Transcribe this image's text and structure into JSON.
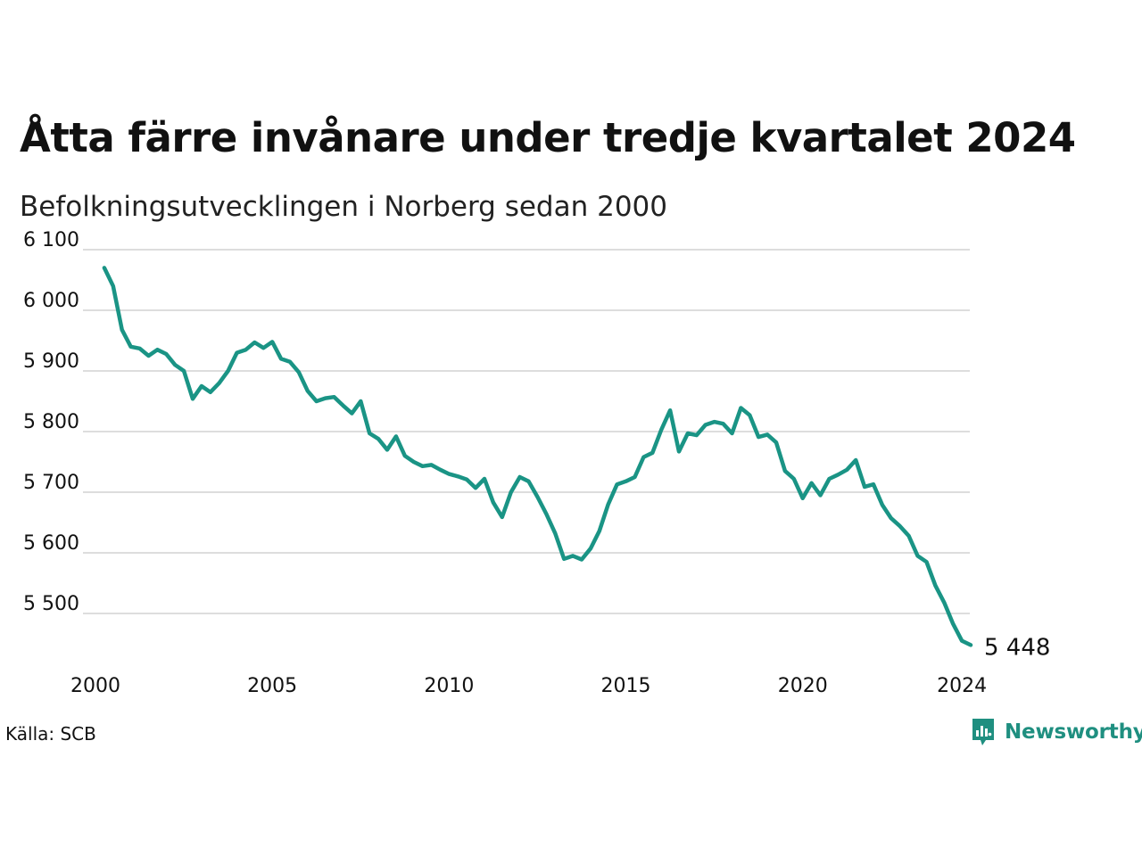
{
  "title": "Åtta färre invånare under tredje kvartalet 2024",
  "subtitle": "Befolkningsutvecklingen i Norberg sedan 2000",
  "source": "Källa: SCB",
  "brand": "Newsworthy",
  "colors": {
    "line": "#1a9485",
    "grid": "#dddddd",
    "brand": "#1f8f80"
  },
  "chart_data": {
    "type": "line",
    "title": "Åtta färre invånare under tredje kvartalet 2024",
    "subtitle": "Befolkningsutvecklingen i Norberg sedan 2000",
    "xlabel": "",
    "ylabel": "",
    "ylim": [
      5445,
      6100
    ],
    "xlim": [
      2000,
      2024.75
    ],
    "yticks": [
      5500,
      5600,
      5700,
      5800,
      5900,
      6000,
      6100
    ],
    "ytick_labels": [
      "5 500",
      "5 600",
      "5 700",
      "5 800",
      "5 900",
      "6 000",
      "6 100"
    ],
    "xticks": [
      2000,
      2005,
      2010,
      2015,
      2020,
      2024
    ],
    "xtick_labels": [
      "2000",
      "2005",
      "2010",
      "2015",
      "2020",
      "2024"
    ],
    "grid": true,
    "end_label": "5 448",
    "series": [
      {
        "x": [
          2000.25,
          2000.5,
          2000.75,
          2001,
          2001.25,
          2001.5,
          2001.75,
          2002,
          2002.25,
          2002.5,
          2002.75,
          2003,
          2003.25,
          2003.5,
          2003.75,
          2004,
          2004.25,
          2004.5,
          2004.75,
          2005,
          2005.25,
          2005.5,
          2005.75,
          2006,
          2006.25,
          2006.5,
          2006.75,
          2007,
          2007.25,
          2007.5,
          2007.75,
          2008,
          2008.25,
          2008.5,
          2008.75,
          2009,
          2009.25,
          2009.5,
          2009.75,
          2010,
          2010.25,
          2010.5,
          2010.75,
          2011,
          2011.25,
          2011.5,
          2011.75,
          2012,
          2012.25,
          2012.5,
          2012.75,
          2013,
          2013.25,
          2013.5,
          2013.75,
          2014,
          2014.25,
          2014.5,
          2014.75,
          2015,
          2015.25,
          2015.5,
          2015.75,
          2016,
          2016.25,
          2016.5,
          2016.75,
          2017,
          2017.25,
          2017.5,
          2017.75,
          2018,
          2018.25,
          2018.5,
          2018.75,
          2019,
          2019.25,
          2019.5,
          2019.75,
          2020,
          2020.25,
          2020.5,
          2020.75,
          2021,
          2021.25,
          2021.5,
          2021.75,
          2022,
          2022.25,
          2022.5,
          2022.75,
          2023,
          2023.25,
          2023.5,
          2023.75,
          2024,
          2024.25,
          2024.5,
          2024.75
        ],
        "values": [
          6070,
          6040,
          5968,
          5940,
          5937,
          5925,
          5935,
          5928,
          5910,
          5900,
          5854,
          5875,
          5865,
          5880,
          5900,
          5930,
          5935,
          5947,
          5938,
          5948,
          5920,
          5915,
          5898,
          5867,
          5850,
          5855,
          5857,
          5843,
          5830,
          5850,
          5797,
          5788,
          5770,
          5792,
          5760,
          5750,
          5743,
          5745,
          5737,
          5730,
          5726,
          5721,
          5707,
          5722,
          5683,
          5659,
          5700,
          5725,
          5718,
          5692,
          5664,
          5632,
          5590,
          5595,
          5589,
          5607,
          5636,
          5680,
          5713,
          5718,
          5725,
          5758,
          5765,
          5803,
          5835,
          5767,
          5797,
          5794,
          5811,
          5816,
          5813,
          5797,
          5839,
          5827,
          5791,
          5795,
          5782,
          5735,
          5722,
          5690,
          5715,
          5695,
          5722,
          5729,
          5737,
          5753,
          5709,
          5713,
          5679,
          5657,
          5644,
          5628,
          5595,
          5585,
          5546,
          5518,
          5483,
          5455,
          5448
        ]
      }
    ]
  }
}
